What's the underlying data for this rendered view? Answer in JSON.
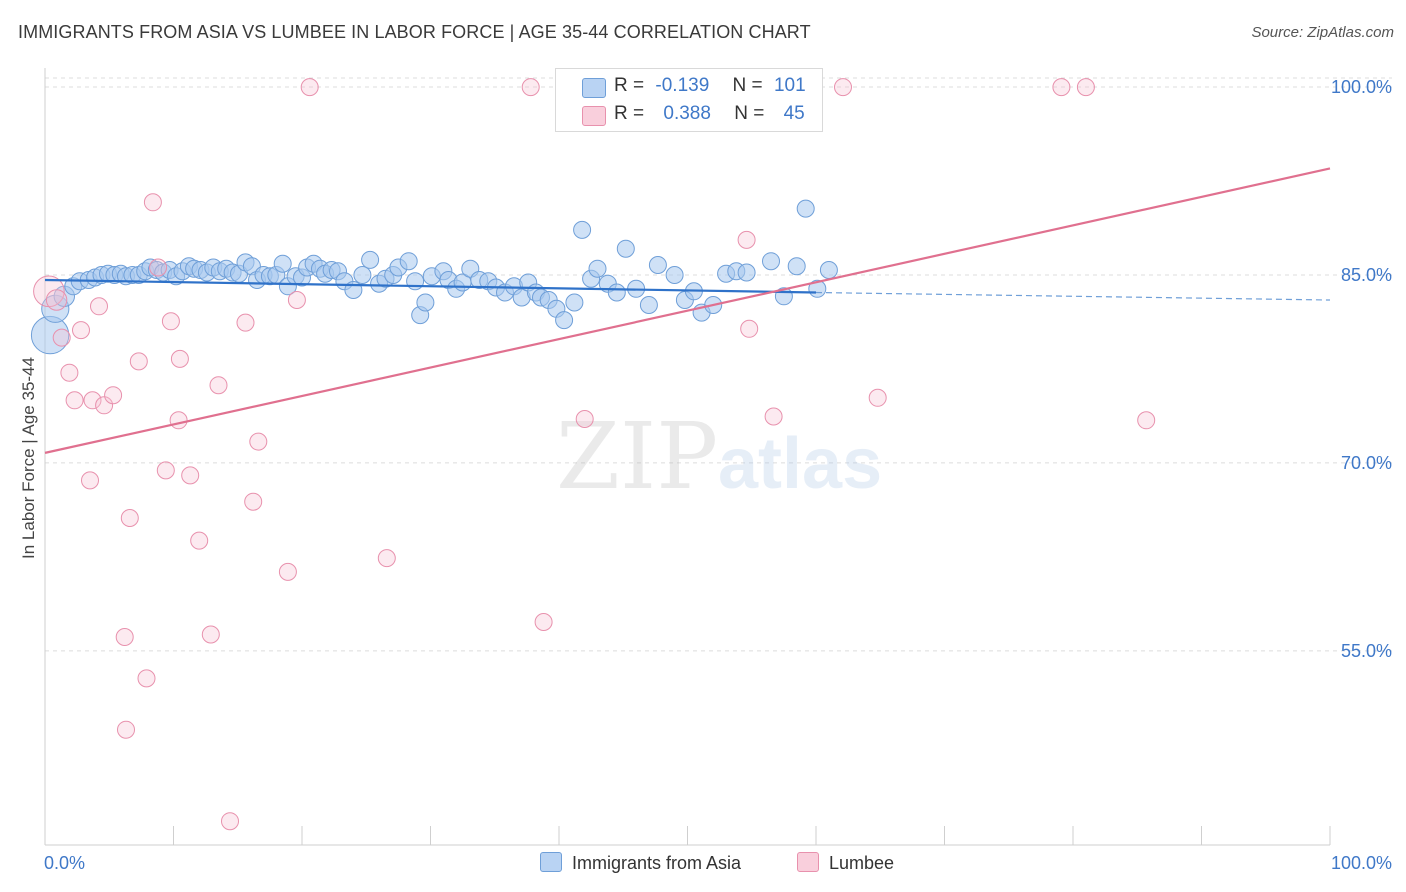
{
  "header": {
    "title": "IMMIGRANTS FROM ASIA VS LUMBEE IN LABOR FORCE | AGE 35-44 CORRELATION CHART",
    "source": "Source: ZipAtlas.com"
  },
  "legend": {
    "r_label": "R =",
    "n_label": "N =",
    "rows": [
      {
        "r": "-0.139",
        "n": "101"
      },
      {
        "r": "0.388",
        "n": "45"
      }
    ]
  },
  "watermark": {
    "left": "ZIP",
    "right": "atlas"
  },
  "colors": {
    "blue_fill": "#a8c8ef",
    "blue_stroke": "#6f9fd8",
    "blue_line": "#2f72c9",
    "pink_fill": "#f6c3d3",
    "pink_stroke": "#e891ad",
    "pink_line": "#e0708f",
    "tick_text": "#3f78c8"
  },
  "chart_data": {
    "type": "scatter",
    "title": "IMMIGRANTS FROM ASIA VS LUMBEE IN LABOR FORCE | AGE 35-44 CORRELATION CHART",
    "xlabel": "",
    "ylabel": "In Labor Force | Age 35-44",
    "xlim": [
      0,
      100
    ],
    "ylim": [
      39.5,
      102
    ],
    "x_tick_labels": [
      "0.0%",
      "100.0%"
    ],
    "y_ticks": [
      55,
      70,
      85,
      100
    ],
    "y_tick_labels": [
      "55.0%",
      "70.0%",
      "85.0%",
      "100.0%"
    ],
    "grid": true,
    "legend_position": "top-center",
    "series": [
      {
        "name": "Immigrants from Asia",
        "color": "#6f9fd8",
        "trend": {
          "x": [
            0,
            60
          ],
          "y": [
            84.6,
            83.6
          ],
          "dashed_to": [
            100,
            83.0
          ]
        },
        "points": [
          [
            0.4,
            80.2,
            2.2
          ],
          [
            0.8,
            82.3,
            1.6
          ],
          [
            1.5,
            83.3,
            1.2
          ],
          [
            2.2,
            84.1,
            1.0
          ],
          [
            2.7,
            84.5,
            1.0
          ],
          [
            3.4,
            84.6,
            1.0
          ],
          [
            3.9,
            84.8,
            1.0
          ],
          [
            4.4,
            85.0,
            1.0
          ],
          [
            4.9,
            85.1,
            1.0
          ],
          [
            5.4,
            85.0,
            1.0
          ],
          [
            5.9,
            85.1,
            1.0
          ],
          [
            6.3,
            84.9,
            1.0
          ],
          [
            6.8,
            85.0,
            1.0
          ],
          [
            7.3,
            85.0,
            1.0
          ],
          [
            7.8,
            85.3,
            1.0
          ],
          [
            8.2,
            85.6,
            1.0
          ],
          [
            8.7,
            85.4,
            1.0
          ],
          [
            9.2,
            85.2,
            1.0
          ],
          [
            9.7,
            85.4,
            1.0
          ],
          [
            10.2,
            84.9,
            1.0
          ],
          [
            10.7,
            85.3,
            1.0
          ],
          [
            11.2,
            85.7,
            1.0
          ],
          [
            11.6,
            85.5,
            1.0
          ],
          [
            12.1,
            85.4,
            1.0
          ],
          [
            12.6,
            85.2,
            1.0
          ],
          [
            13.1,
            85.6,
            1.0
          ],
          [
            13.6,
            85.3,
            1.0
          ],
          [
            14.1,
            85.5,
            1.0
          ],
          [
            14.6,
            85.2,
            1.0
          ],
          [
            15.1,
            85.1,
            1.0
          ],
          [
            15.6,
            86.0,
            1.0
          ],
          [
            16.1,
            85.7,
            1.0
          ],
          [
            16.5,
            84.6,
            1.0
          ],
          [
            17.0,
            85.0,
            1.0
          ],
          [
            17.5,
            84.9,
            1.0
          ],
          [
            18.0,
            85.0,
            1.0
          ],
          [
            18.5,
            85.9,
            1.0
          ],
          [
            18.9,
            84.1,
            1.0
          ],
          [
            19.5,
            84.9,
            1.0
          ],
          [
            20.0,
            84.8,
            1.0
          ],
          [
            20.4,
            85.6,
            1.0
          ],
          [
            20.9,
            85.9,
            1.0
          ],
          [
            21.4,
            85.5,
            1.0
          ],
          [
            21.8,
            85.1,
            1.0
          ],
          [
            22.3,
            85.4,
            1.0
          ],
          [
            22.8,
            85.3,
            1.0
          ],
          [
            23.3,
            84.5,
            1.0
          ],
          [
            24.0,
            83.8,
            1.0
          ],
          [
            24.7,
            85.0,
            1.0
          ],
          [
            25.3,
            86.2,
            1.0
          ],
          [
            26.0,
            84.3,
            1.0
          ],
          [
            26.5,
            84.7,
            1.0
          ],
          [
            27.1,
            85.0,
            1.0
          ],
          [
            27.5,
            85.6,
            1.0
          ],
          [
            28.3,
            86.1,
            1.0
          ],
          [
            28.8,
            84.5,
            1.0
          ],
          [
            29.2,
            81.8,
            1.0
          ],
          [
            29.6,
            82.8,
            1.0
          ],
          [
            30.1,
            84.9,
            1.0
          ],
          [
            31.0,
            85.3,
            1.0
          ],
          [
            31.4,
            84.6,
            1.0
          ],
          [
            32.0,
            83.9,
            1.0
          ],
          [
            32.5,
            84.4,
            1.0
          ],
          [
            33.1,
            85.5,
            1.0
          ],
          [
            33.8,
            84.6,
            1.0
          ],
          [
            34.5,
            84.5,
            1.0
          ],
          [
            35.1,
            84.0,
            1.0
          ],
          [
            35.8,
            83.6,
            1.0
          ],
          [
            36.5,
            84.1,
            1.0
          ],
          [
            37.1,
            83.2,
            1.0
          ],
          [
            37.6,
            84.4,
            1.0
          ],
          [
            38.2,
            83.6,
            1.0
          ],
          [
            38.6,
            83.2,
            1.0
          ],
          [
            39.2,
            83.0,
            1.0
          ],
          [
            39.8,
            82.3,
            1.0
          ],
          [
            40.4,
            81.4,
            1.0
          ],
          [
            41.2,
            82.8,
            1.0
          ],
          [
            41.8,
            88.6,
            1.0
          ],
          [
            42.5,
            84.7,
            1.0
          ],
          [
            43.0,
            85.5,
            1.0
          ],
          [
            43.8,
            84.3,
            1.0
          ],
          [
            44.5,
            83.6,
            1.0
          ],
          [
            45.2,
            87.1,
            1.0
          ],
          [
            46.0,
            83.9,
            1.0
          ],
          [
            47.0,
            82.6,
            1.0
          ],
          [
            47.7,
            85.8,
            1.0
          ],
          [
            49.0,
            85.0,
            1.0
          ],
          [
            49.8,
            83.0,
            1.0
          ],
          [
            50.5,
            83.7,
            1.0
          ],
          [
            51.1,
            82.0,
            1.0
          ],
          [
            52.0,
            82.6,
            1.0
          ],
          [
            53.0,
            85.1,
            1.0
          ],
          [
            53.8,
            85.3,
            1.0
          ],
          [
            54.6,
            85.2,
            1.0
          ],
          [
            56.5,
            86.1,
            1.0
          ],
          [
            57.5,
            83.3,
            1.0
          ],
          [
            58.5,
            85.7,
            1.0
          ],
          [
            59.2,
            90.3,
            1.0
          ],
          [
            60.1,
            83.9,
            1.0
          ],
          [
            61.0,
            85.4,
            1.0
          ]
        ]
      },
      {
        "name": "Lumbee",
        "color": "#e891ad",
        "trend": {
          "x": [
            0,
            100
          ],
          "y": [
            70.8,
            93.5
          ]
        },
        "points": [
          [
            0.3,
            83.7,
            1.8
          ],
          [
            0.9,
            83.0,
            1.2
          ],
          [
            1.3,
            80.0,
            1.0
          ],
          [
            1.9,
            77.2,
            1.0
          ],
          [
            2.3,
            75.0,
            1.0
          ],
          [
            2.8,
            80.6,
            1.0
          ],
          [
            3.5,
            68.6,
            1.0
          ],
          [
            3.7,
            75.0,
            1.0
          ],
          [
            4.2,
            82.5,
            1.0
          ],
          [
            4.6,
            74.6,
            1.0
          ],
          [
            5.3,
            75.4,
            1.0
          ],
          [
            6.2,
            56.1,
            1.0
          ],
          [
            6.3,
            48.7,
            1.0
          ],
          [
            6.6,
            65.6,
            1.0
          ],
          [
            7.3,
            78.1,
            1.0
          ],
          [
            7.9,
            52.8,
            1.0
          ],
          [
            8.4,
            90.8,
            1.0
          ],
          [
            8.8,
            85.6,
            1.0
          ],
          [
            9.4,
            69.4,
            1.0
          ],
          [
            9.8,
            81.3,
            1.0
          ],
          [
            10.4,
            73.4,
            1.0
          ],
          [
            10.5,
            78.3,
            1.0
          ],
          [
            11.3,
            69.0,
            1.0
          ],
          [
            12.0,
            63.8,
            1.0
          ],
          [
            12.9,
            56.3,
            1.0
          ],
          [
            13.5,
            76.2,
            1.0
          ],
          [
            14.4,
            41.4,
            1.0
          ],
          [
            15.6,
            81.2,
            1.0
          ],
          [
            16.2,
            66.9,
            1.0
          ],
          [
            16.6,
            71.7,
            1.0
          ],
          [
            18.9,
            61.3,
            1.0
          ],
          [
            20.6,
            100.0,
            1.0
          ],
          [
            26.6,
            62.4,
            1.0
          ],
          [
            37.8,
            100.0,
            1.0
          ],
          [
            38.8,
            57.3,
            1.0
          ],
          [
            42.0,
            73.5,
            1.0
          ],
          [
            54.6,
            87.8,
            1.0
          ],
          [
            54.8,
            80.7,
            1.0
          ],
          [
            56.7,
            73.7,
            1.0
          ],
          [
            62.1,
            100.0,
            1.0
          ],
          [
            64.8,
            75.2,
            1.0
          ],
          [
            79.1,
            100.0,
            1.0
          ],
          [
            81.0,
            100.0,
            1.0
          ],
          [
            85.7,
            73.4,
            1.0
          ],
          [
            19.6,
            83.0,
            1.0
          ]
        ]
      }
    ]
  },
  "bottom_legend": {
    "items": [
      "Immigrants from Asia",
      "Lumbee"
    ]
  }
}
